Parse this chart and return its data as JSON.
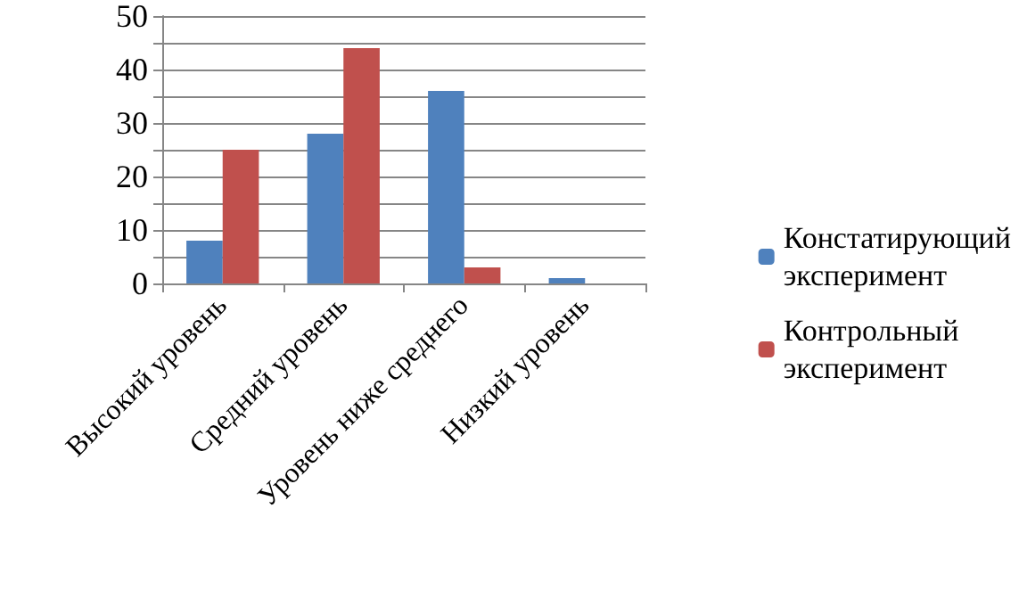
{
  "chart_data": {
    "type": "bar",
    "categories": [
      "Высокий уровень",
      "Средний уровень",
      "Уровень ниже среднего",
      "Низкий уровень"
    ],
    "series": [
      {
        "name": "Констатирующий эксперимент",
        "color": "#4f81bd",
        "values": [
          8,
          28,
          36,
          1
        ]
      },
      {
        "name": "Контрольный эксперимент",
        "color": "#c0504d",
        "values": [
          25,
          44,
          3,
          0
        ]
      }
    ],
    "ylim": [
      0,
      50
    ],
    "yticks": [
      0,
      {
        "value": 5,
        "label": null
      },
      10,
      {
        "value": 15,
        "label": null
      },
      20,
      {
        "value": 25,
        "label": null
      },
      30,
      {
        "value": 35,
        "label": null
      },
      40,
      {
        "value": 45,
        "label": null
      },
      50
    ],
    "grid": "y",
    "legend": "right"
  }
}
